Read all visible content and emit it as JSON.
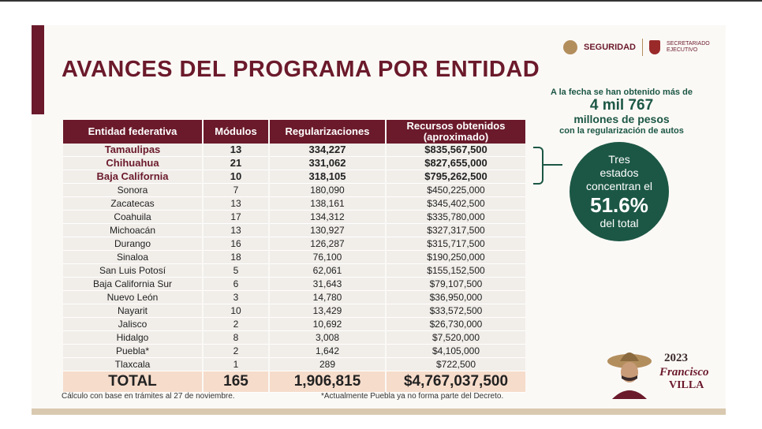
{
  "title": "AVANCES DEL PROGRAMA POR ENTIDAD",
  "logos": {
    "seguridad": "SEGURIDAD",
    "secretariado_line1": "SECRETARIADO",
    "secretariado_line2": "EJECUTIVO"
  },
  "table": {
    "headers": [
      "Entidad federativa",
      "Módulos",
      "Regularizaciones",
      "Recursos obtenidos (aproximado)"
    ],
    "rows": [
      {
        "entidad": "Tamaulipas",
        "modulos": "13",
        "regularizaciones": "334,227",
        "recursos": "$835,567,500"
      },
      {
        "entidad": "Chihuahua",
        "modulos": "21",
        "regularizaciones": "331,062",
        "recursos": "$827,655,000"
      },
      {
        "entidad": "Baja California",
        "modulos": "10",
        "regularizaciones": "318,105",
        "recursos": "$795,262,500"
      },
      {
        "entidad": "Sonora",
        "modulos": "7",
        "regularizaciones": "180,090",
        "recursos": "$450,225,000"
      },
      {
        "entidad": "Zacatecas",
        "modulos": "13",
        "regularizaciones": "138,161",
        "recursos": "$345,402,500"
      },
      {
        "entidad": "Coahuila",
        "modulos": "17",
        "regularizaciones": "134,312",
        "recursos": "$335,780,000"
      },
      {
        "entidad": "Michoacán",
        "modulos": "13",
        "regularizaciones": "130,927",
        "recursos": "$327,317,500"
      },
      {
        "entidad": "Durango",
        "modulos": "16",
        "regularizaciones": "126,287",
        "recursos": "$315,717,500"
      },
      {
        "entidad": "Sinaloa",
        "modulos": "18",
        "regularizaciones": "76,100",
        "recursos": "$190,250,000"
      },
      {
        "entidad": "San Luis Potosí",
        "modulos": "5",
        "regularizaciones": "62,061",
        "recursos": "$155,152,500"
      },
      {
        "entidad": "Baja California Sur",
        "modulos": "6",
        "regularizaciones": "31,643",
        "recursos": "$79,107,500"
      },
      {
        "entidad": "Nuevo León",
        "modulos": "3",
        "regularizaciones": "14,780",
        "recursos": "$36,950,000"
      },
      {
        "entidad": "Nayarit",
        "modulos": "10",
        "regularizaciones": "13,429",
        "recursos": "$33,572,500"
      },
      {
        "entidad": "Jalisco",
        "modulos": "2",
        "regularizaciones": "10,692",
        "recursos": "$26,730,000"
      },
      {
        "entidad": "Hidalgo",
        "modulos": "8",
        "regularizaciones": "3,008",
        "recursos": "$7,520,000"
      },
      {
        "entidad": "Puebla*",
        "modulos": "2",
        "regularizaciones": "1,642",
        "recursos": "$4,105,000"
      },
      {
        "entidad": "Tlaxcala",
        "modulos": "1",
        "regularizaciones": "289",
        "recursos": "$722,500"
      }
    ],
    "total": {
      "label": "TOTAL",
      "modulos": "165",
      "regularizaciones": "1,906,815",
      "recursos": "$4,767,037,500"
    }
  },
  "callout": {
    "line1": "A la fecha se han obtenido más de",
    "line2": "4 mil 767",
    "line3": "millones de pesos",
    "line4": "con la regularización de autos"
  },
  "circle": {
    "line1": "Tres",
    "line2": "estados",
    "line3": "concentran el",
    "percent": "51.6%",
    "line4": "del total"
  },
  "notes": {
    "left": "Cálculo con base en trámites al 27 de noviembre.",
    "right": "*Actualmente Puebla ya no forma parte del Decreto."
  },
  "brand": {
    "year": "2023",
    "name": "Francisco",
    "surname": "VILLA"
  },
  "colors": {
    "guinda": "#6b1a2b",
    "green": "#1c5745",
    "total_bg": "#f6dccb"
  }
}
